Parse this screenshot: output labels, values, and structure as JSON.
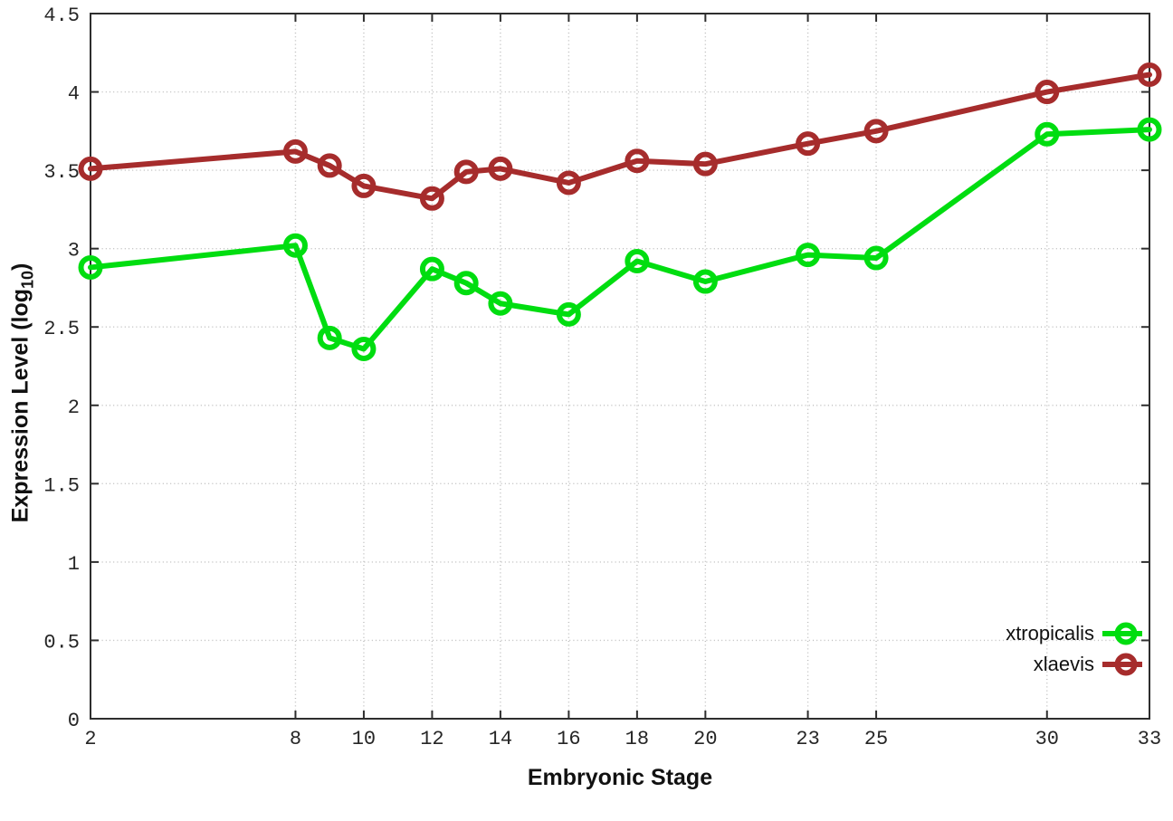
{
  "chart_data": {
    "type": "line",
    "title": "",
    "xlabel": "Embryonic Stage",
    "ylabel": "Expression Level (log10)",
    "ylabel_parts": {
      "prefix": "Expression Level (log",
      "sub": "10",
      "suffix": ")"
    },
    "x": [
      2,
      8,
      9,
      10,
      12,
      13,
      14,
      16,
      18,
      20,
      23,
      25,
      30,
      33
    ],
    "series": [
      {
        "name": "xtropicalis",
        "color": "#00dd10",
        "values": [
          2.88,
          3.02,
          2.43,
          2.36,
          2.87,
          2.78,
          2.65,
          2.58,
          2.92,
          2.79,
          2.96,
          2.94,
          3.73,
          3.76
        ]
      },
      {
        "name": "xlaevis",
        "color": "#a62c2c",
        "values": [
          3.51,
          3.62,
          3.53,
          3.4,
          3.32,
          3.49,
          3.51,
          3.42,
          3.56,
          3.54,
          3.67,
          3.75,
          4.0,
          4.11
        ]
      }
    ],
    "xlim": [
      2,
      33
    ],
    "ylim": [
      0,
      4.5
    ],
    "xticks": [
      2,
      8,
      10,
      12,
      14,
      16,
      18,
      20,
      23,
      25,
      30,
      33
    ],
    "xtick_labels": [
      "2",
      "8",
      "10",
      "12",
      "14",
      "16",
      "18",
      "20",
      "23",
      "25",
      "30",
      "33"
    ],
    "yticks": [
      0,
      0.5,
      1,
      1.5,
      2,
      2.5,
      3,
      3.5,
      4,
      4.5
    ],
    "ytick_labels": [
      "0",
      "0.5",
      "1",
      "1.5",
      "2",
      "2.5",
      "3",
      "3.5",
      "4",
      "4.5"
    ],
    "grid": "dotted",
    "legend_position": "bottom-right",
    "marker": "open-circle",
    "axis_color": "#2e2e2e",
    "grid_color": "#bdbdbd"
  }
}
